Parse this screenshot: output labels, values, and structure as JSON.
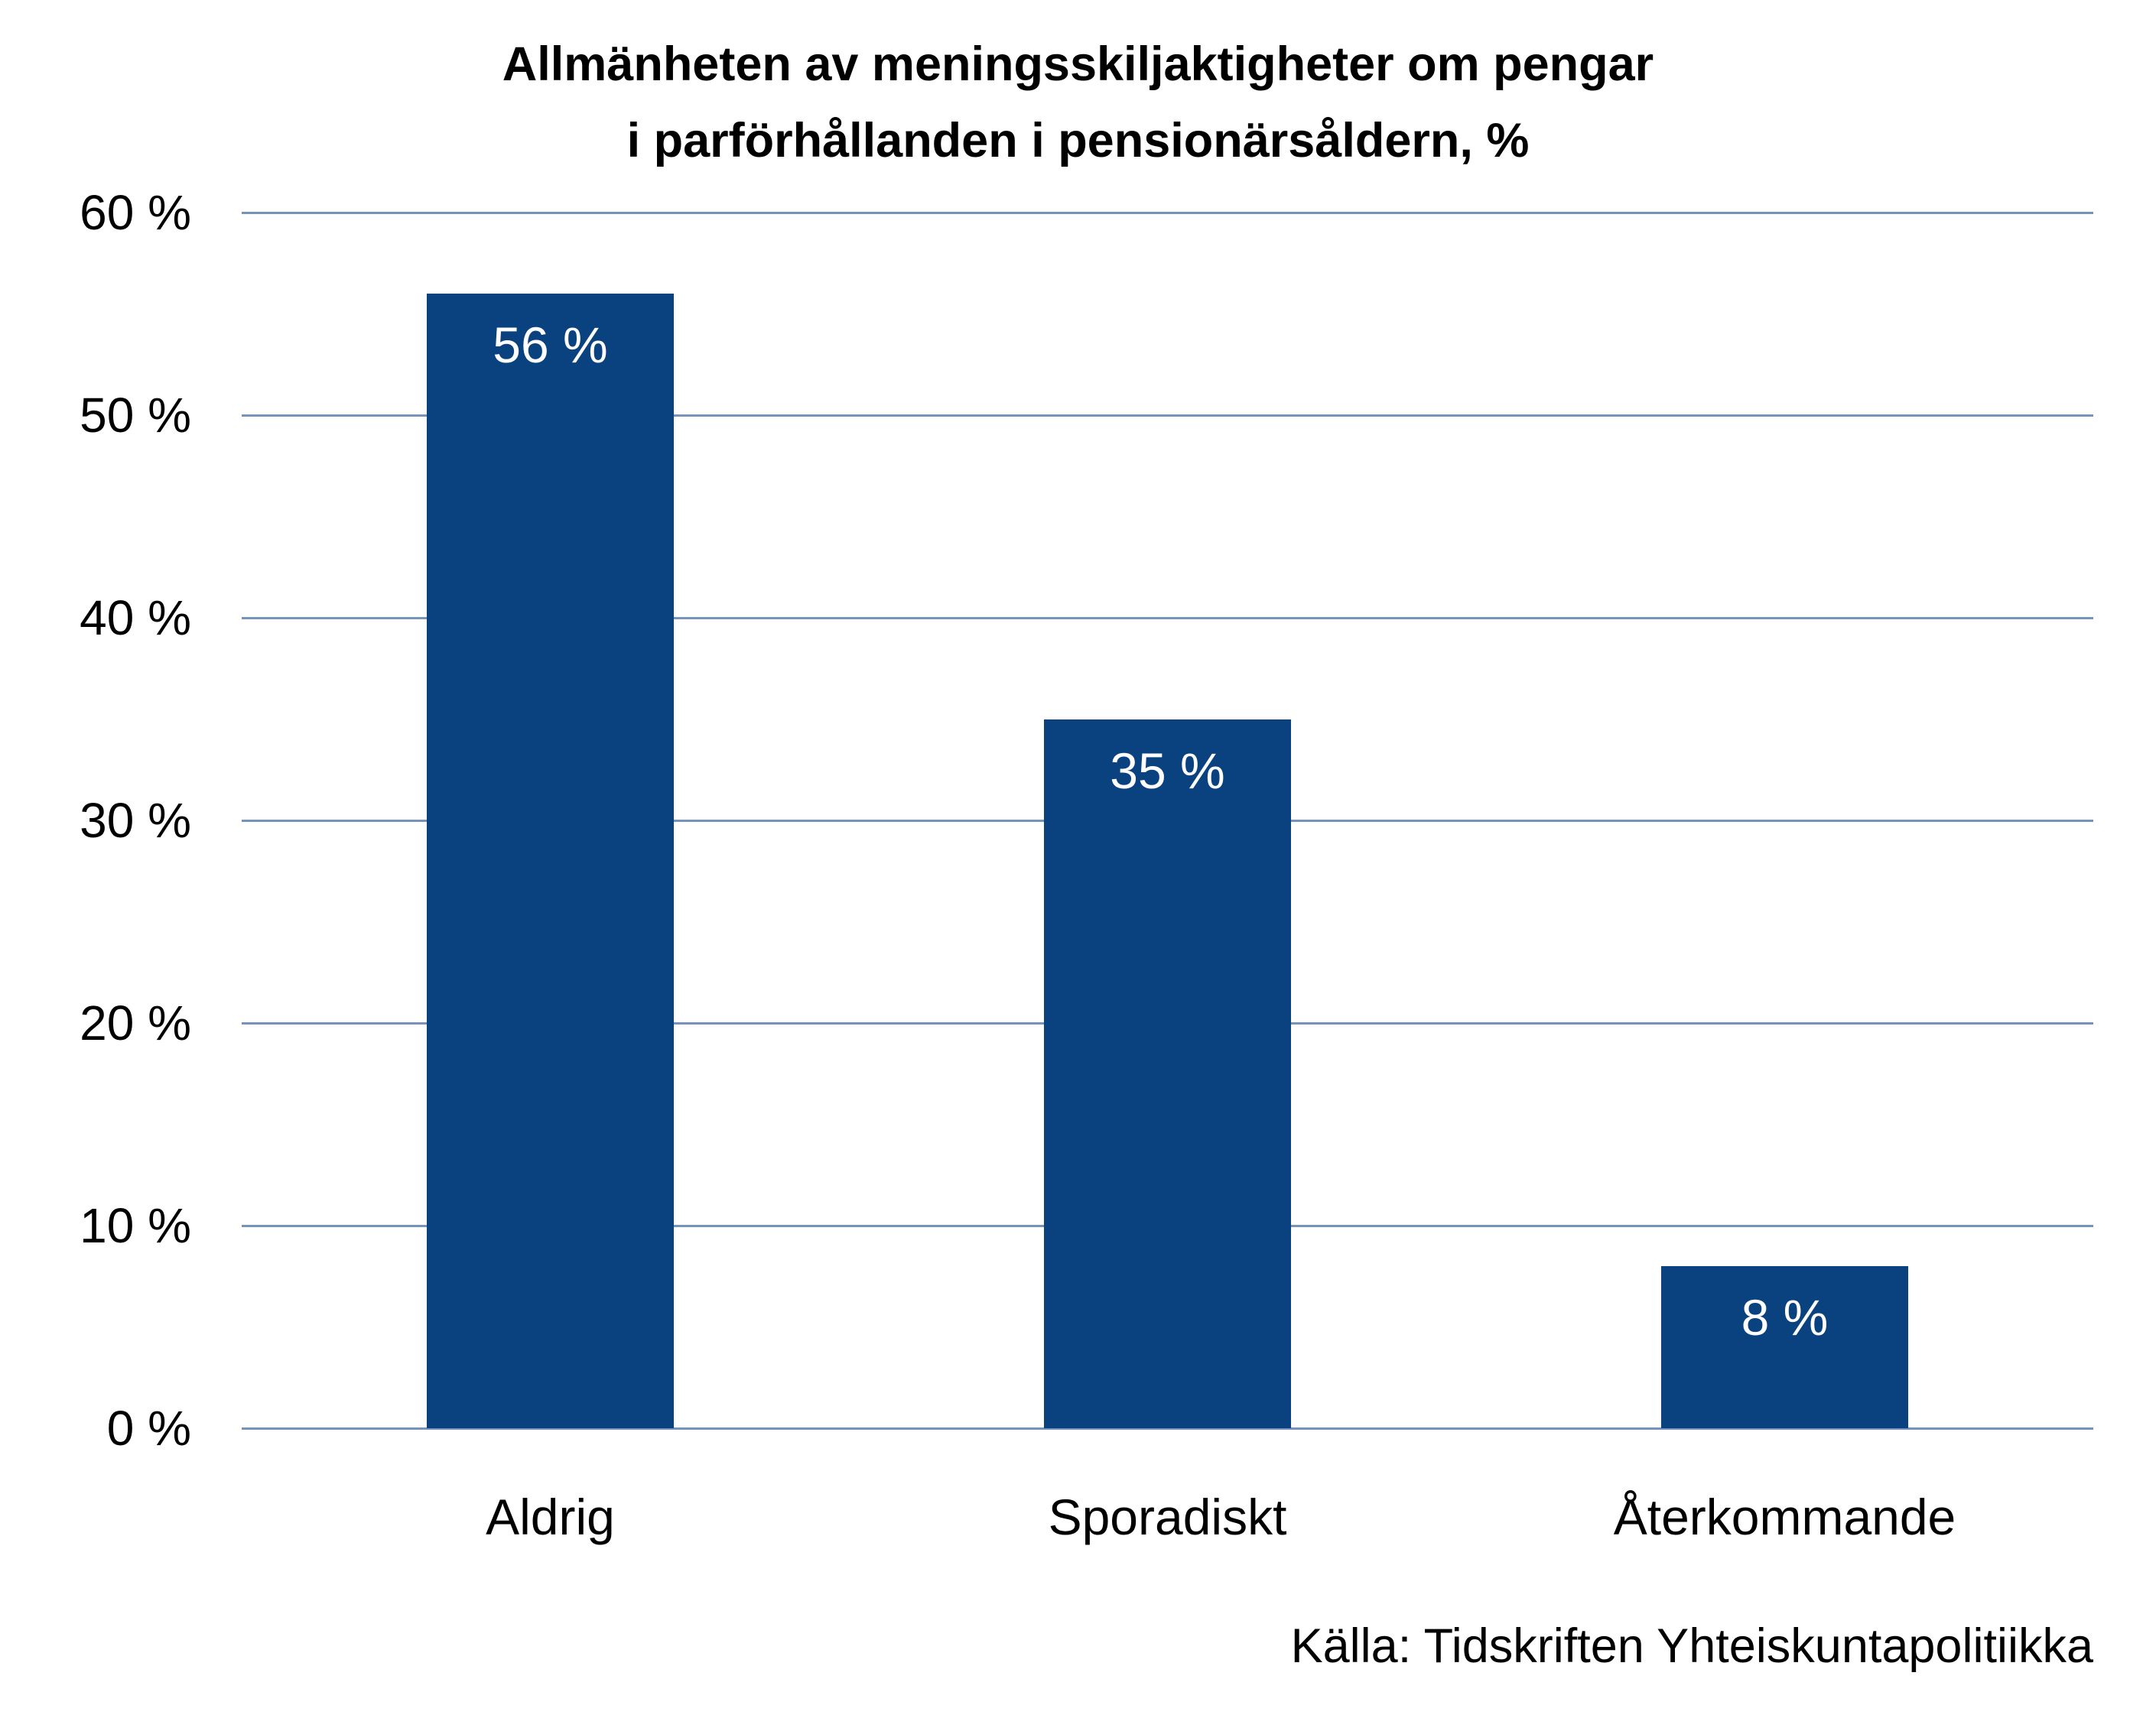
{
  "title": {
    "line1": "Allmänheten av meningsskiljaktigheter om pengar",
    "line2": "i parförhållanden i pensionärsåldern, %"
  },
  "source": "Källa: Tidskriften Yhteiskuntapolitiikka",
  "colors": {
    "bar": "#0A4280",
    "gridline": "#7593BB",
    "bar_label": "#FFFFFF",
    "text": "#000000",
    "background": "#FFFFFF"
  },
  "chart_data": {
    "type": "bar",
    "title": "Allmänheten av meningsskiljaktigheter om pengar i parförhållanden i pensionärsåldern, %",
    "categories": [
      "Aldrig",
      "Sporadiskt",
      "Återkommande"
    ],
    "values": [
      56,
      35,
      8
    ],
    "value_labels": [
      "56 %",
      "35 %",
      "8 %"
    ],
    "value_label_position": "inside-top",
    "xlabel": "",
    "ylabel": "",
    "ylim": [
      0,
      60
    ],
    "y_step": 10,
    "y_ticks_top_to_bottom": [
      "60 %",
      "50 %",
      "40 %",
      "30 %",
      "20 %",
      "10 %",
      "0 %"
    ],
    "grid": true,
    "gridlines": "horizontal-only",
    "legend": "none",
    "source": "Källa: Tidskriften Yhteiskuntapolitiikka"
  }
}
